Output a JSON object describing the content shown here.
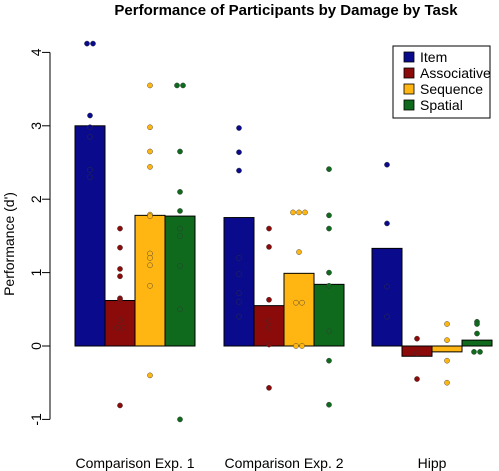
{
  "chart_data": {
    "type": "bar",
    "title": "Performance of Participants by Damage by Task",
    "xlabel": "",
    "ylabel": "Performance (d')",
    "ylim": [
      -1,
      4
    ],
    "yticks": [
      -1,
      0,
      1,
      2,
      3,
      4
    ],
    "categories": [
      "Comparison Exp. 1",
      "Comparison Exp. 2",
      "Hipp"
    ],
    "legend_position": "top-right",
    "series": [
      {
        "name": "Item",
        "color": "#0a0a8c",
        "values": [
          3.0,
          1.75,
          1.33
        ],
        "points": [
          [
            4.12,
            4.12,
            3.14,
            2.98,
            2.85,
            2.4,
            2.3
          ],
          [
            2.97,
            2.64,
            2.39,
            1.2,
            0.98,
            0.72,
            0.6,
            0.4
          ],
          [
            2.47,
            1.67,
            0.81,
            0.4
          ]
        ]
      },
      {
        "name": "Associative",
        "color": "#8b0a0a",
        "values": [
          0.62,
          0.55,
          -0.14
        ],
        "points": [
          [
            1.6,
            1.34,
            1.05,
            0.95,
            0.65,
            0.63,
            0.35,
            0.25,
            0.25,
            -0.81
          ],
          [
            1.6,
            1.35,
            0.63,
            0.34,
            0.25,
            0.02,
            -0.57
          ],
          [
            0.1,
            -0.1,
            -0.45
          ]
        ]
      },
      {
        "name": "Sequence",
        "color": "#ffb612",
        "values": [
          1.78,
          0.99,
          -0.08
        ],
        "points": [
          [
            3.55,
            2.98,
            2.65,
            2.44,
            1.79,
            1.77,
            1.26,
            1.2,
            1.1,
            0.82,
            -0.4
          ],
          [
            1.82,
            1.82,
            1.82,
            1.28,
            0.59,
            0.59,
            0.0,
            0.0
          ],
          [
            0.3,
            0.08,
            -0.2,
            -0.5
          ]
        ]
      },
      {
        "name": "Spatial",
        "color": "#0f6a1d",
        "values": [
          1.77,
          0.84,
          0.08
        ],
        "points": [
          [
            3.55,
            3.55,
            2.65,
            2.1,
            1.84,
            1.6,
            1.5,
            1.09,
            0.5,
            -1.0
          ],
          [
            2.41,
            1.78,
            1.6,
            1.0,
            0.82,
            0.2,
            -0.2,
            -0.8
          ],
          [
            0.33,
            0.3,
            0.17,
            -0.08,
            -0.08
          ]
        ]
      }
    ]
  }
}
